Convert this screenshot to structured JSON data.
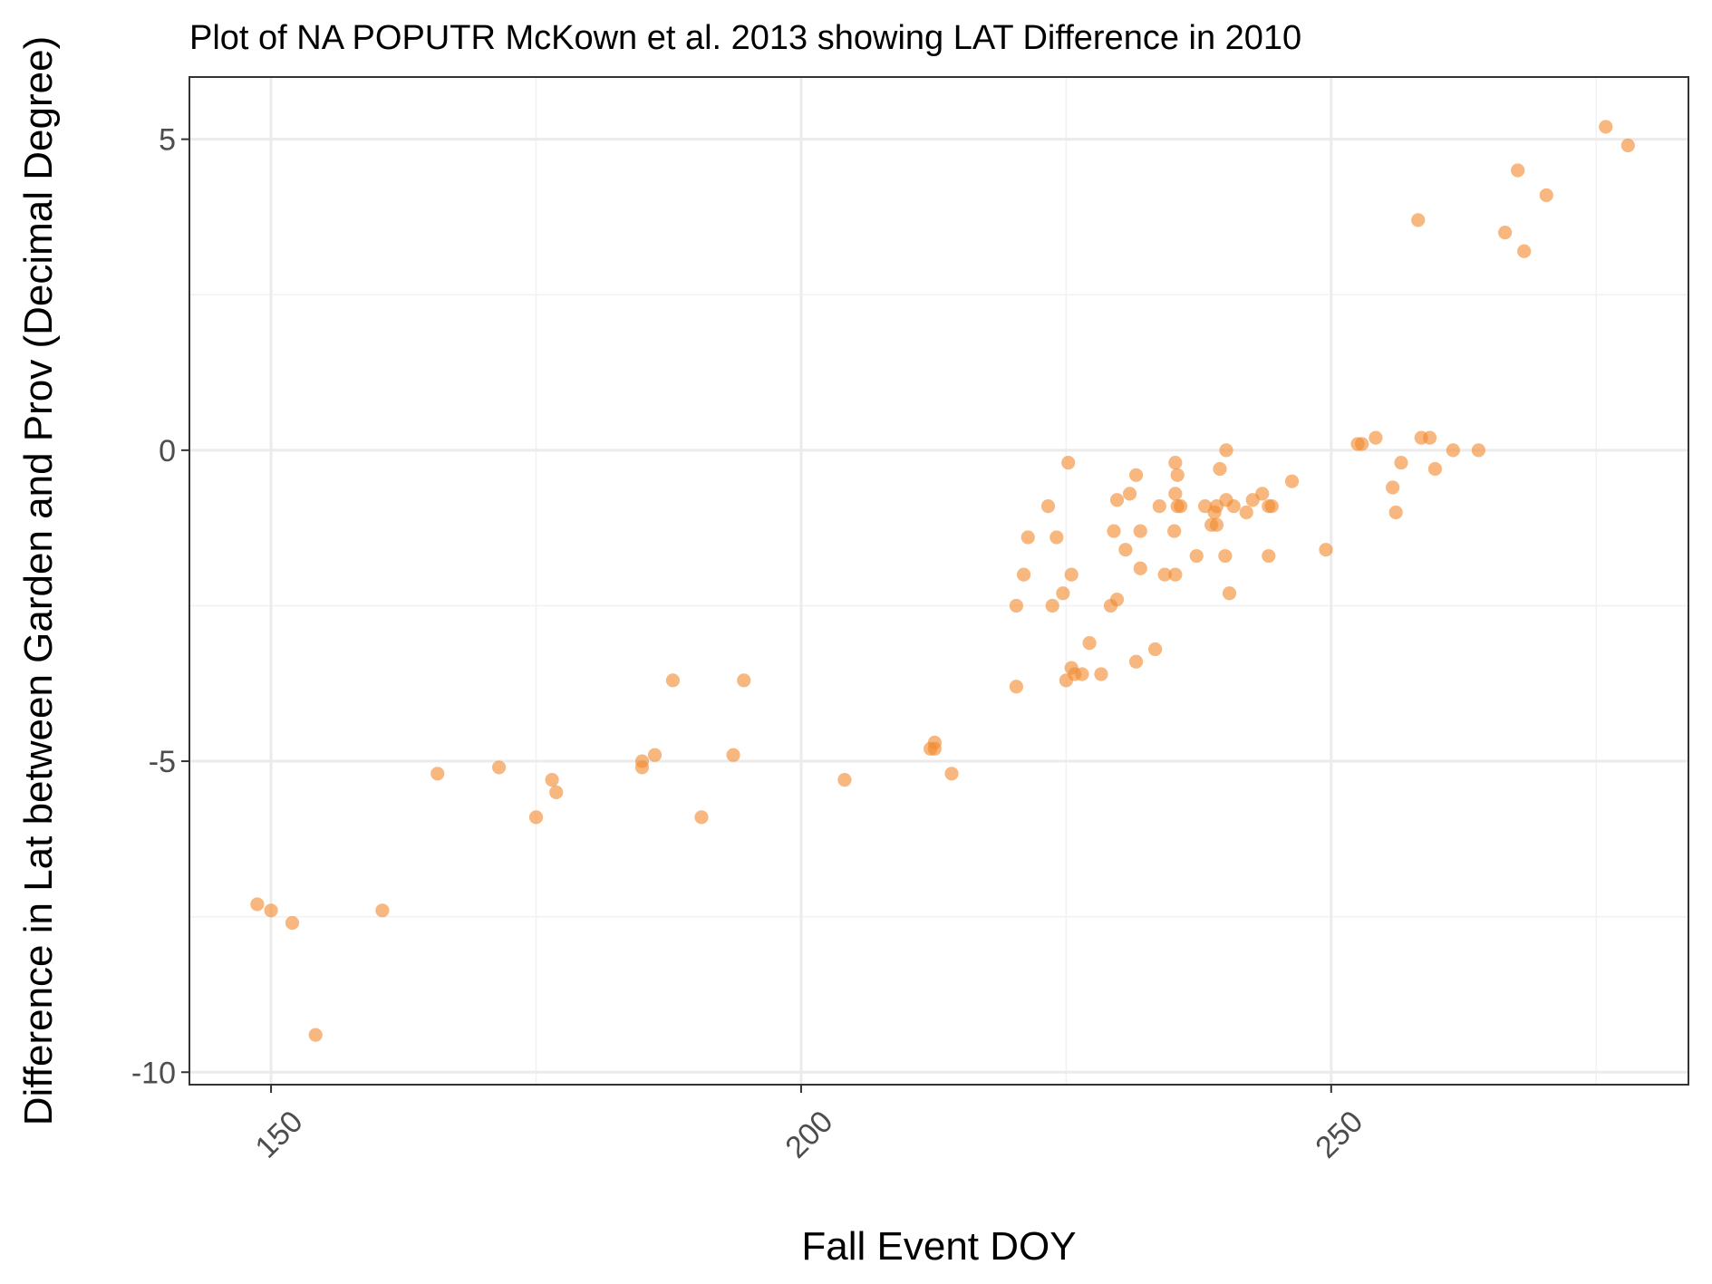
{
  "chart_data": {
    "type": "scatter",
    "title": "Plot of NA POPUTR McKown et al. 2013 showing LAT Difference in 2010",
    "xlabel": "Fall Event DOY",
    "ylabel": "Difference in Lat between Garden and Prov (Decimal Degree)",
    "xlim": [
      142.3,
      283.7
    ],
    "ylim": [
      -10.2,
      6.0
    ],
    "xticks": [
      150,
      200,
      250
    ],
    "xtick_labels": [
      "150",
      "200",
      "250"
    ],
    "yticks": [
      -10,
      -5,
      0,
      5
    ],
    "ytick_labels": [
      "-10",
      "-5",
      "0",
      "5"
    ],
    "grid": true,
    "point_color": "#f28a30",
    "points": [
      {
        "x": 148.7,
        "y": -7.3
      },
      {
        "x": 150.0,
        "y": -7.4
      },
      {
        "x": 152.0,
        "y": -7.6
      },
      {
        "x": 154.2,
        "y": -9.4
      },
      {
        "x": 160.5,
        "y": -7.4
      },
      {
        "x": 165.7,
        "y": -5.2
      },
      {
        "x": 171.5,
        "y": -5.1
      },
      {
        "x": 175.0,
        "y": -5.9
      },
      {
        "x": 176.5,
        "y": -5.3
      },
      {
        "x": 176.9,
        "y": -5.5
      },
      {
        "x": 185.0,
        "y": -5.0
      },
      {
        "x": 185.0,
        "y": -5.1
      },
      {
        "x": 186.2,
        "y": -4.9
      },
      {
        "x": 187.9,
        "y": -3.7
      },
      {
        "x": 190.6,
        "y": -5.9
      },
      {
        "x": 193.6,
        "y": -4.9
      },
      {
        "x": 194.6,
        "y": -3.7
      },
      {
        "x": 204.1,
        "y": -5.3
      },
      {
        "x": 212.2,
        "y": -4.8
      },
      {
        "x": 212.6,
        "y": -4.7
      },
      {
        "x": 212.6,
        "y": -4.8
      },
      {
        "x": 214.2,
        "y": -5.2
      },
      {
        "x": 220.3,
        "y": -3.8
      },
      {
        "x": 220.3,
        "y": -2.5
      },
      {
        "x": 221.0,
        "y": -2.0
      },
      {
        "x": 221.4,
        "y": -1.4
      },
      {
        "x": 223.3,
        "y": -0.9
      },
      {
        "x": 223.7,
        "y": -2.5
      },
      {
        "x": 224.1,
        "y": -1.4
      },
      {
        "x": 224.7,
        "y": -2.3
      },
      {
        "x": 225.2,
        "y": -0.2
      },
      {
        "x": 225.0,
        "y": -3.7
      },
      {
        "x": 225.5,
        "y": -2.0
      },
      {
        "x": 225.5,
        "y": -3.5
      },
      {
        "x": 225.8,
        "y": -3.6
      },
      {
        "x": 226.5,
        "y": -3.6
      },
      {
        "x": 227.2,
        "y": -3.1
      },
      {
        "x": 228.3,
        "y": -3.6
      },
      {
        "x": 229.2,
        "y": -2.5
      },
      {
        "x": 229.5,
        "y": -1.3
      },
      {
        "x": 229.8,
        "y": -0.8
      },
      {
        "x": 229.8,
        "y": -2.4
      },
      {
        "x": 230.6,
        "y": -1.6
      },
      {
        "x": 231.0,
        "y": -0.7
      },
      {
        "x": 231.6,
        "y": -0.4
      },
      {
        "x": 231.6,
        "y": -3.4
      },
      {
        "x": 232.0,
        "y": -1.3
      },
      {
        "x": 232.0,
        "y": -1.9
      },
      {
        "x": 233.4,
        "y": -3.2
      },
      {
        "x": 233.8,
        "y": -0.9
      },
      {
        "x": 234.3,
        "y": -2.0
      },
      {
        "x": 235.3,
        "y": -0.2
      },
      {
        "x": 235.3,
        "y": -0.7
      },
      {
        "x": 235.2,
        "y": -1.3
      },
      {
        "x": 235.5,
        "y": -0.4
      },
      {
        "x": 235.5,
        "y": -0.9
      },
      {
        "x": 235.3,
        "y": -2.0
      },
      {
        "x": 235.8,
        "y": -0.9
      },
      {
        "x": 237.3,
        "y": -1.7
      },
      {
        "x": 238.1,
        "y": -0.9
      },
      {
        "x": 238.7,
        "y": -1.2
      },
      {
        "x": 239.0,
        "y": -1.0
      },
      {
        "x": 239.2,
        "y": -0.9
      },
      {
        "x": 239.2,
        "y": -1.2
      },
      {
        "x": 239.5,
        "y": -0.3
      },
      {
        "x": 240.1,
        "y": 0.0
      },
      {
        "x": 240.1,
        "y": -0.8
      },
      {
        "x": 240.0,
        "y": -1.7
      },
      {
        "x": 240.4,
        "y": -2.3
      },
      {
        "x": 240.8,
        "y": -0.9
      },
      {
        "x": 242.0,
        "y": -1.0
      },
      {
        "x": 242.6,
        "y": -0.8
      },
      {
        "x": 243.5,
        "y": -0.7
      },
      {
        "x": 244.1,
        "y": -1.7
      },
      {
        "x": 244.1,
        "y": -0.9
      },
      {
        "x": 244.4,
        "y": -0.9
      },
      {
        "x": 246.3,
        "y": -0.5
      },
      {
        "x": 249.5,
        "y": -1.6
      },
      {
        "x": 252.5,
        "y": 0.1
      },
      {
        "x": 252.9,
        "y": 0.1
      },
      {
        "x": 254.2,
        "y": 0.2
      },
      {
        "x": 255.8,
        "y": -0.6
      },
      {
        "x": 256.1,
        "y": -1.0
      },
      {
        "x": 256.6,
        "y": -0.2
      },
      {
        "x": 258.2,
        "y": 3.7
      },
      {
        "x": 258.5,
        "y": 0.2
      },
      {
        "x": 259.3,
        "y": 0.2
      },
      {
        "x": 259.8,
        "y": -0.3
      },
      {
        "x": 261.5,
        "y": 0.0
      },
      {
        "x": 263.9,
        "y": 0.0
      },
      {
        "x": 266.4,
        "y": 3.5
      },
      {
        "x": 267.6,
        "y": 4.5
      },
      {
        "x": 268.2,
        "y": 3.2
      },
      {
        "x": 270.3,
        "y": 4.1
      },
      {
        "x": 275.9,
        "y": 5.2
      },
      {
        "x": 278.0,
        "y": 4.9
      }
    ]
  }
}
